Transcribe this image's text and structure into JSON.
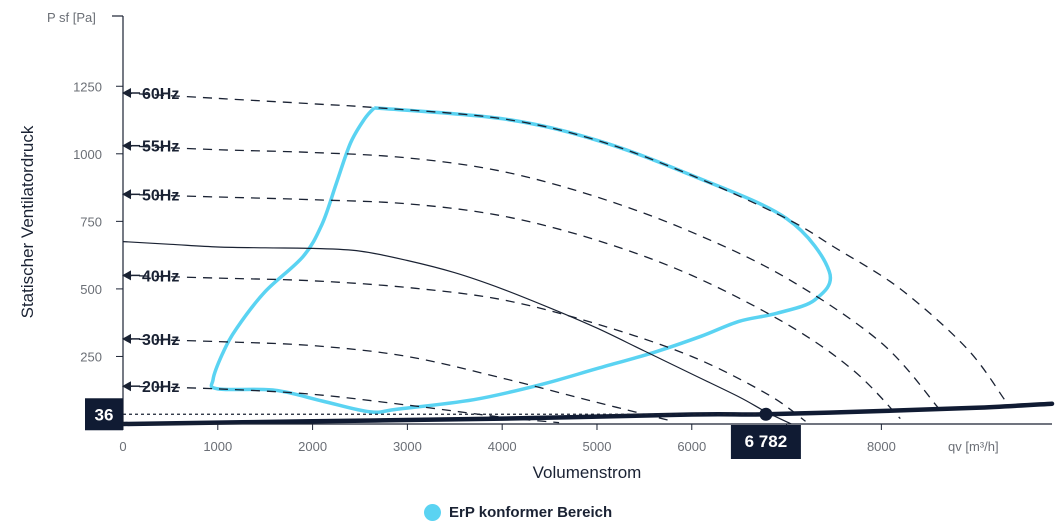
{
  "chart_data": {
    "type": "line",
    "x_unit_label": "qv [m³/h]",
    "y_unit_label": "P sf [Pa]",
    "xlabel": "Volumenstrom",
    "ylabel": "Statischer Ventilatordruck",
    "xlim": [
      0,
      9800
    ],
    "ylim": [
      0,
      1510
    ],
    "x_ticks": [
      "0",
      "1000",
      "2000",
      "3000",
      "4000",
      "5000",
      "6000",
      "7000",
      "8000"
    ],
    "x_tick_values": [
      0,
      1000,
      2000,
      3000,
      4000,
      5000,
      6000,
      7000,
      8000
    ],
    "y_ticks": [
      "250",
      "500",
      "750",
      "1000",
      "1250"
    ],
    "y_tick_values": [
      250,
      500,
      750,
      1000,
      1250
    ],
    "grid": false,
    "frequency_curves": [
      {
        "label": "60Hz",
        "points": [
          [
            0,
            1225
          ],
          [
            1000,
            1205
          ],
          [
            2000,
            1185
          ],
          [
            2700,
            1170
          ],
          [
            4000,
            1130
          ],
          [
            5000,
            1050
          ],
          [
            6000,
            920
          ],
          [
            7000,
            760
          ],
          [
            7500,
            655
          ],
          [
            8200,
            500
          ],
          [
            8900,
            280
          ],
          [
            9300,
            90
          ]
        ]
      },
      {
        "label": "55Hz",
        "points": [
          [
            0,
            1030
          ],
          [
            1000,
            1015
          ],
          [
            2000,
            1005
          ],
          [
            3000,
            985
          ],
          [
            4000,
            935
          ],
          [
            5000,
            840
          ],
          [
            6000,
            710
          ],
          [
            7000,
            540
          ],
          [
            8000,
            300
          ],
          [
            8600,
            60
          ]
        ]
      },
      {
        "label": "50Hz",
        "points": [
          [
            0,
            850
          ],
          [
            1000,
            840
          ],
          [
            2000,
            830
          ],
          [
            3000,
            815
          ],
          [
            4000,
            770
          ],
          [
            5000,
            680
          ],
          [
            6000,
            550
          ],
          [
            7000,
            370
          ],
          [
            7700,
            200
          ],
          [
            8200,
            20
          ]
        ]
      },
      {
        "label": "40Hz",
        "points": [
          [
            0,
            550
          ],
          [
            1000,
            540
          ],
          [
            2000,
            530
          ],
          [
            3000,
            505
          ],
          [
            4000,
            460
          ],
          [
            5000,
            370
          ],
          [
            6000,
            250
          ],
          [
            6800,
            110
          ],
          [
            7200,
            10
          ]
        ]
      },
      {
        "label": "30Hz",
        "points": [
          [
            0,
            315
          ],
          [
            1000,
            305
          ],
          [
            2000,
            290
          ],
          [
            3000,
            250
          ],
          [
            4000,
            170
          ],
          [
            5000,
            80
          ],
          [
            5800,
            10
          ]
        ]
      },
      {
        "label": "20Hz",
        "points": [
          [
            0,
            140
          ],
          [
            1000,
            130
          ],
          [
            2000,
            110
          ],
          [
            3000,
            70
          ],
          [
            4000,
            25
          ],
          [
            4600,
            5
          ]
        ]
      }
    ],
    "erp_region": {
      "label": "ErP konformer Bereich",
      "color": "#5ad3f2",
      "points": [
        [
          2650,
          1170
        ],
        [
          4000,
          1130
        ],
        [
          5000,
          1050
        ],
        [
          6000,
          920
        ],
        [
          7000,
          760
        ],
        [
          7450,
          565
        ],
        [
          7300,
          460
        ],
        [
          6900,
          410
        ],
        [
          6500,
          380
        ],
        [
          6100,
          325
        ],
        [
          5600,
          265
        ],
        [
          5000,
          205
        ],
        [
          4400,
          145
        ],
        [
          3700,
          90
        ],
        [
          2900,
          55
        ],
        [
          2600,
          45
        ],
        [
          2100,
          85
        ],
        [
          1600,
          125
        ],
        [
          1000,
          130
        ],
        [
          950,
          165
        ],
        [
          1050,
          260
        ],
        [
          1200,
          355
        ],
        [
          1500,
          490
        ],
        [
          1900,
          620
        ],
        [
          2100,
          740
        ],
        [
          2250,
          890
        ],
        [
          2400,
          1040
        ],
        [
          2550,
          1130
        ],
        [
          2650,
          1170
        ]
      ]
    },
    "system_curve": {
      "points": [
        [
          0,
          0
        ],
        [
          2000,
          10
        ],
        [
          4000,
          20
        ],
        [
          6000,
          35
        ],
        [
          6782,
          36
        ],
        [
          8000,
          48
        ],
        [
          9000,
          60
        ],
        [
          9800,
          75
        ]
      ]
    },
    "fan_curve": {
      "points": [
        [
          0,
          675
        ],
        [
          500,
          665
        ],
        [
          1000,
          655
        ],
        [
          1500,
          652
        ],
        [
          2000,
          650
        ],
        [
          2500,
          640
        ],
        [
          3000,
          605
        ],
        [
          3500,
          560
        ],
        [
          4000,
          500
        ],
        [
          4500,
          430
        ],
        [
          5000,
          355
        ],
        [
          5500,
          270
        ],
        [
          6000,
          185
        ],
        [
          6500,
          100
        ],
        [
          6782,
          45
        ],
        [
          7050,
          0
        ]
      ]
    },
    "operating_point": {
      "x": 6782,
      "y": 36,
      "x_label": "6 782",
      "y_label": "36"
    }
  },
  "legend": {
    "label": "ErP konformer Bereich"
  }
}
